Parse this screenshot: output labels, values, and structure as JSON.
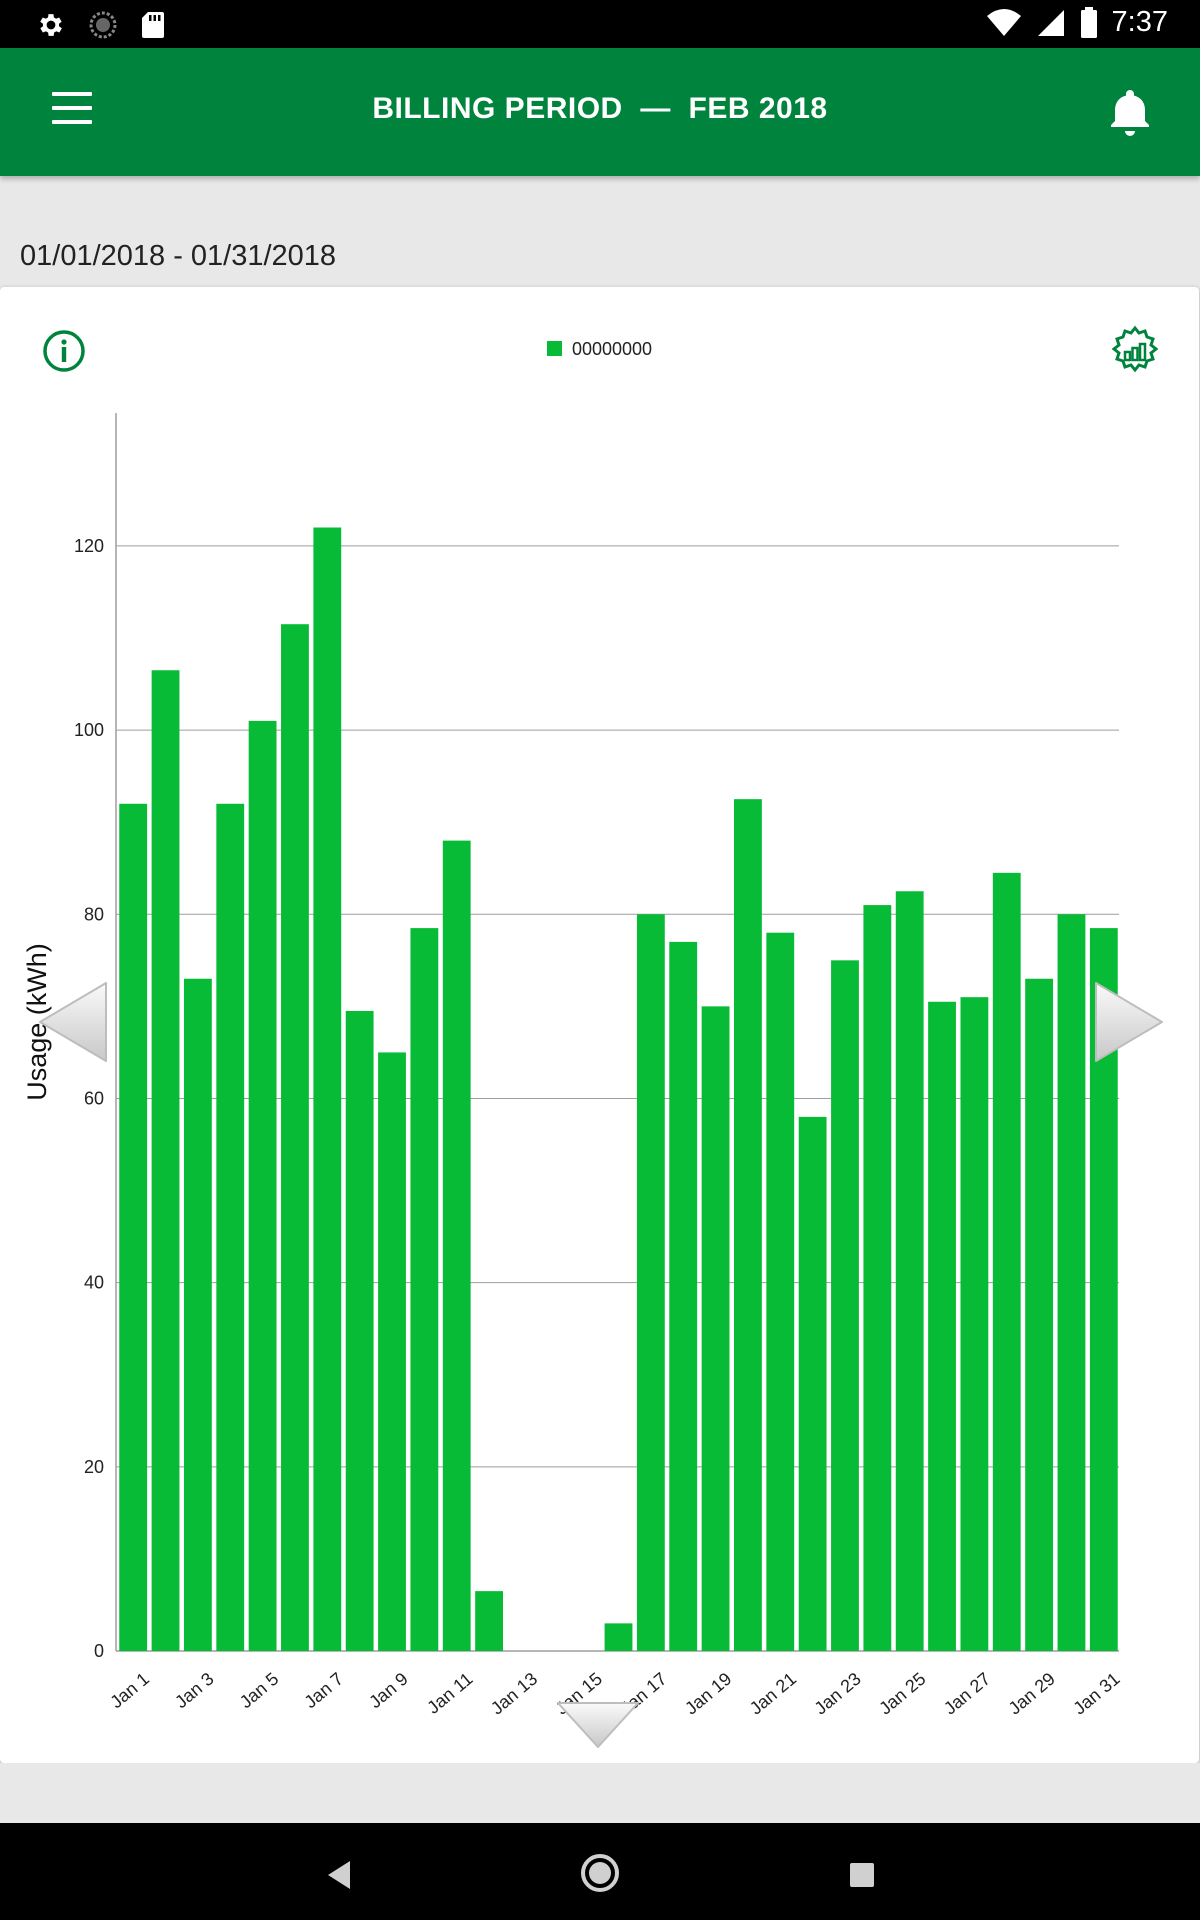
{
  "status_bar": {
    "time": "7:37",
    "icons": [
      "settings-icon",
      "sync-icon",
      "sd-card-icon",
      "wifi-icon",
      "signal-icon",
      "battery-icon"
    ]
  },
  "app_bar": {
    "title": "BILLING PERIOD  —  FEB 2018",
    "left_icon": "menu-icon",
    "right_icon": "bell-icon",
    "color": "#00843d"
  },
  "date_range": "01/01/2018 - 01/31/2018",
  "card": {
    "info_icon": "info-icon",
    "settings_icon": "chart-settings-icon"
  },
  "chart_data": {
    "type": "bar",
    "title": "",
    "xlabel": "",
    "ylabel": "Usage (kWh)",
    "ylim": [
      0,
      134
    ],
    "yticks": [
      0,
      20,
      40,
      60,
      80,
      100,
      120
    ],
    "grid": true,
    "legend_position": "top-center",
    "bar_color": "#08bb36",
    "categories": [
      "Jan 1",
      "Jan 2",
      "Jan 3",
      "Jan 4",
      "Jan 5",
      "Jan 6",
      "Jan 7",
      "Jan 8",
      "Jan 9",
      "Jan 10",
      "Jan 11",
      "Jan 12",
      "Jan 13",
      "Jan 14",
      "Jan 15",
      "Jan 16",
      "Jan 17",
      "Jan 18",
      "Jan 19",
      "Jan 20",
      "Jan 21",
      "Jan 22",
      "Jan 23",
      "Jan 24",
      "Jan 25",
      "Jan 26",
      "Jan 27",
      "Jan 28",
      "Jan 29",
      "Jan 30",
      "Jan 31"
    ],
    "tick_labels": [
      "Jan 1",
      "Jan 3",
      "Jan 5",
      "Jan 7",
      "Jan 9",
      "Jan 11",
      "Jan 13",
      "Jan 15",
      "Jan 17",
      "Jan 19",
      "Jan 21",
      "Jan 23",
      "Jan 25",
      "Jan 27",
      "Jan 29",
      "Jan 31"
    ],
    "series": [
      {
        "name": "00000000",
        "values": [
          92,
          106.5,
          73,
          92,
          101,
          111.5,
          122,
          69.5,
          65,
          78.5,
          88,
          6.5,
          0,
          0,
          0,
          3,
          80,
          77,
          70,
          92.5,
          78,
          58,
          75,
          81,
          82.5,
          70.5,
          71,
          84.5,
          73,
          80,
          78.5
        ]
      }
    ]
  },
  "nav_arrows": {
    "left": "chevron-left-icon",
    "right": "chevron-right-icon",
    "down": "chevron-down-icon"
  },
  "system_nav": [
    "back-icon",
    "home-icon",
    "recents-icon"
  ]
}
